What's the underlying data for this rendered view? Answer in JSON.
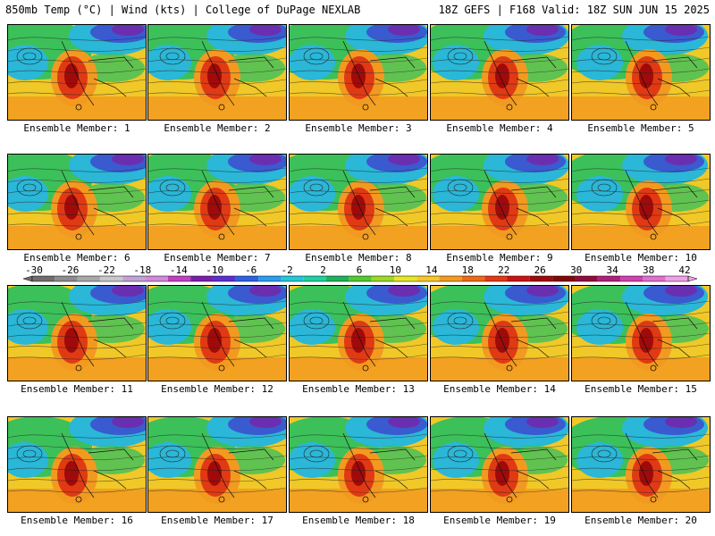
{
  "header": {
    "title": "850mb Temp (°C) | Wind (kts) | College of DuPage NEXLAB",
    "run_info": "18Z GEFS | F168 Valid: 18Z SUN JUN 15 2025"
  },
  "member_label_prefix": "Ensemble Member:",
  "members": [
    {
      "number": "1",
      "label": "Ensemble Member: 1"
    },
    {
      "number": "2",
      "label": "Ensemble Member: 2"
    },
    {
      "number": "3",
      "label": "Ensemble Member: 3"
    },
    {
      "number": "4",
      "label": "Ensemble Member: 4"
    },
    {
      "number": "5",
      "label": "Ensemble Member: 5"
    },
    {
      "number": "6",
      "label": "Ensemble Member: 6"
    },
    {
      "number": "7",
      "label": "Ensemble Member: 7"
    },
    {
      "number": "8",
      "label": "Ensemble Member: 8"
    },
    {
      "number": "9",
      "label": "Ensemble Member: 9"
    },
    {
      "number": "10",
      "label": "Ensemble Member: 10"
    },
    {
      "number": "11",
      "label": "Ensemble Member: 11"
    },
    {
      "number": "12",
      "label": "Ensemble Member: 12"
    },
    {
      "number": "13",
      "label": "Ensemble Member: 13"
    },
    {
      "number": "14",
      "label": "Ensemble Member: 14"
    },
    {
      "number": "15",
      "label": "Ensemble Member: 15"
    },
    {
      "number": "16",
      "label": "Ensemble Member: 16"
    },
    {
      "number": "17",
      "label": "Ensemble Member: 17"
    },
    {
      "number": "18",
      "label": "Ensemble Member: 18"
    },
    {
      "number": "19",
      "label": "Ensemble Member: 19"
    },
    {
      "number": "20",
      "label": "Ensemble Member: 20"
    }
  ],
  "colorbar": {
    "tick_labels": [
      "-30",
      "-26",
      "-22",
      "-18",
      "-14",
      "-10",
      "-6",
      "-2",
      "2",
      "6",
      "10",
      "14",
      "18",
      "22",
      "26",
      "30",
      "34",
      "38",
      "42"
    ],
    "colors": [
      "#6e6e6e",
      "#8c8c8c",
      "#a8a8a8",
      "#c8c8c8",
      "#bfa3d6",
      "#d08ad8",
      "#c040c0",
      "#7a1fa8",
      "#5a2fd0",
      "#3060e0",
      "#2a9df0",
      "#22c8d8",
      "#1fd0a0",
      "#1fb05a",
      "#52c832",
      "#9ad82a",
      "#e6e628",
      "#f5c828",
      "#f29a20",
      "#ea6a18",
      "#e03a14",
      "#c81414",
      "#a00a0a",
      "#800808",
      "#900c3c",
      "#b0207a",
      "#d040b0",
      "#e070d0",
      "#f0a0e8"
    ]
  },
  "map_colors": {
    "ocean_cold": "#2ab7d8",
    "mid_green": "#3cc05a",
    "warm_yellow": "#f0c828",
    "orange": "#f29a20",
    "hot_red": "#e03a14",
    "core": "#a00a0a",
    "cold_blue": "#3a5ad0",
    "cold_purple": "#6a2fb0"
  }
}
